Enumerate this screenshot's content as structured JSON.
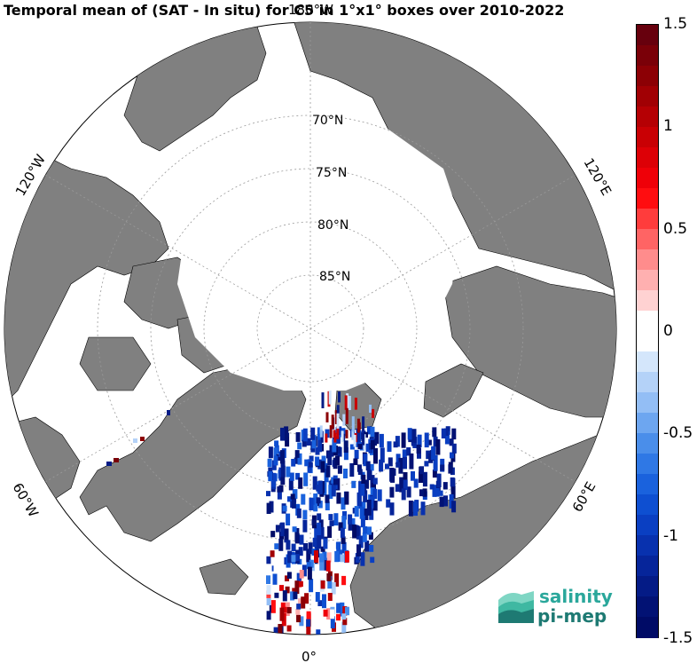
{
  "title": "Temporal mean of (SAT - In situ) for C5 in 1°x1° boxes over 2010-2022",
  "map": {
    "projection": "north-polar-stereographic",
    "lon_labels": [
      {
        "id": "lon-180",
        "text": "180°W"
      },
      {
        "id": "lon-120w",
        "text": "120°W"
      },
      {
        "id": "lon-60w",
        "text": "60°W"
      },
      {
        "id": "lon-0",
        "text": "0°"
      },
      {
        "id": "lon-60e",
        "text": "60°E"
      },
      {
        "id": "lon-120e",
        "text": "120°E"
      }
    ],
    "lat_labels": [
      "70°N",
      "75°N",
      "80°N",
      "85°N"
    ],
    "land_color": "#808080",
    "ice_color": "#ffffff"
  },
  "colorbar": {
    "min": -1.5,
    "max": 1.5,
    "ticks": [
      "1.5",
      "1",
      "0.5",
      "0",
      "-0.5",
      "-1",
      "-1.5"
    ],
    "colors_top_to_bottom": [
      "#67000d",
      "#7a0008",
      "#8c0005",
      "#a10004",
      "#b50004",
      "#c90004",
      "#dd0006",
      "#ef0008",
      "#ff0d10",
      "#ff3c3c",
      "#ff6464",
      "#ff8c8c",
      "#ffb0b0",
      "#ffd2d2",
      "#ffffff",
      "#ffffff",
      "#d4e6fb",
      "#b4d2f8",
      "#93bef5",
      "#6da6f0",
      "#4a8eea",
      "#2f78e5",
      "#1a62dd",
      "#0e4fd1",
      "#0a3fc2",
      "#0831ae",
      "#06259a",
      "#041b86",
      "#021274",
      "#000b66"
    ]
  },
  "logo": {
    "line1": "salinity",
    "line2": "pi-mep"
  }
}
